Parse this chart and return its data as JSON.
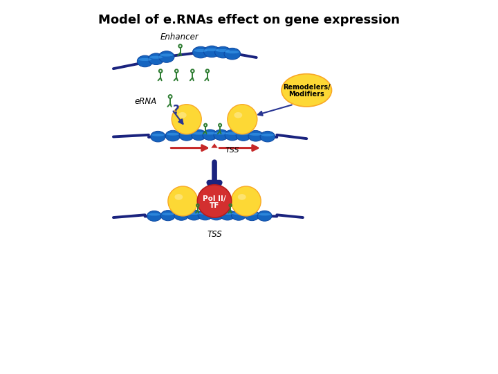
{
  "title": "Model of e.RNAs effect on gene expression",
  "title_fontsize": 13,
  "title_fontweight": "bold",
  "bg_color": "#ffffff",
  "colors": {
    "strand": "#1a237e",
    "nucleosome_face": "#1565c0",
    "nucleosome_edge": "#0d47a1",
    "nucleosome_light": "#42a5f5",
    "green": "#2e7d32",
    "green_hairpin": "#33691e",
    "yellow": "#fdd835",
    "yellow_edge": "#f9a825",
    "orange": "#fb8c00",
    "red_pol": "#d32f2f",
    "red_pol_edge": "#b71c1c",
    "red_arrow": "#c62828",
    "blue_arrow": "#1a237e",
    "remod_fill": "#fdd835",
    "remod_edge": "#f9a825",
    "question": "#283593"
  },
  "layout": {
    "xlim": [
      0,
      10
    ],
    "ylim": [
      0,
      10
    ],
    "figw": 7.2,
    "figh": 5.4,
    "dpi": 100
  }
}
